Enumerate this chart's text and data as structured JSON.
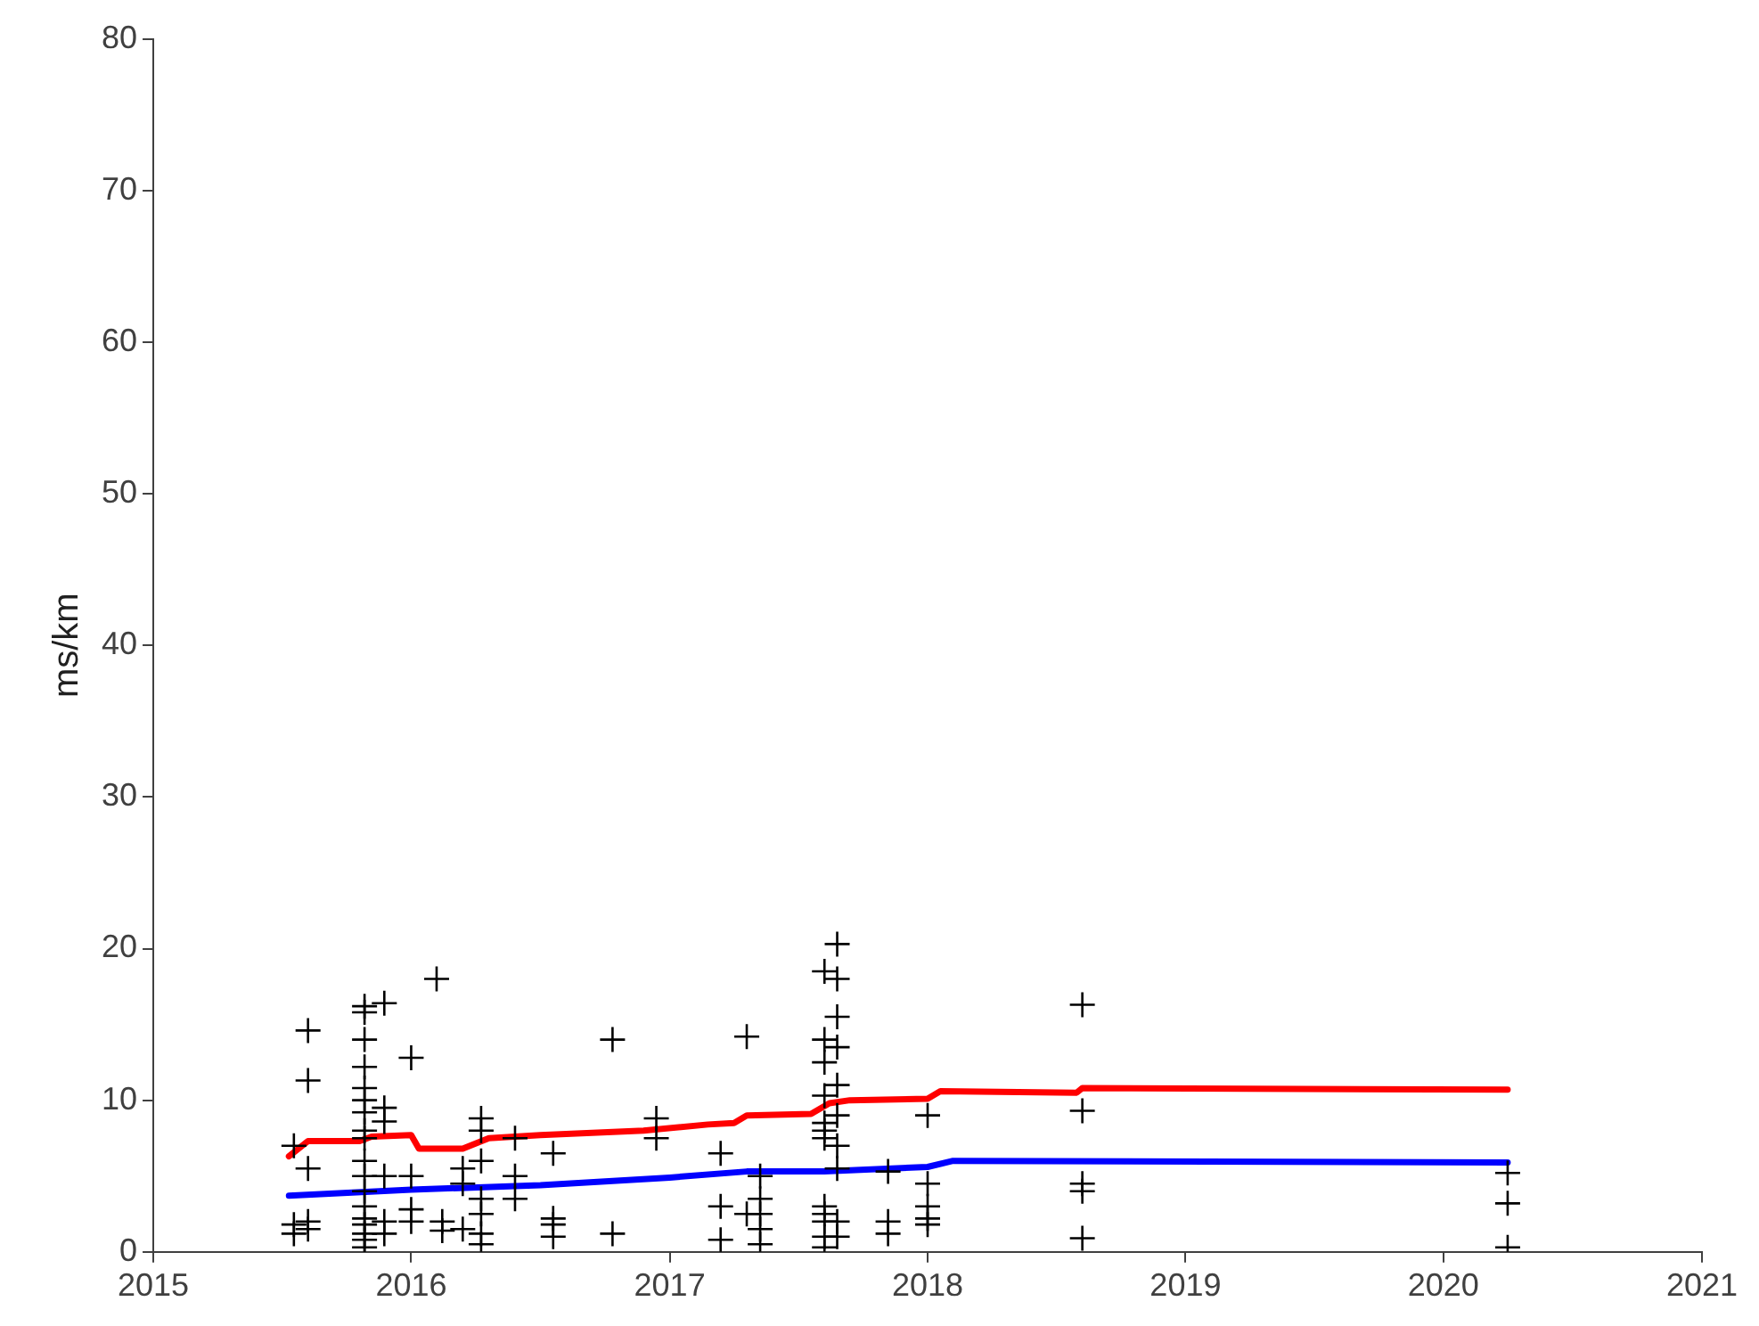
{
  "chart_data": {
    "type": "scatter",
    "ylabel": "ms/km",
    "xlim": [
      "2015",
      "2021"
    ],
    "xticks": [
      "2015",
      "2016",
      "2017",
      "2018",
      "2019",
      "2020",
      "2021"
    ],
    "ylim": [
      0,
      80
    ],
    "yticks": [
      0,
      10,
      20,
      30,
      40,
      50,
      60,
      70,
      80
    ],
    "grid": false,
    "legend": false,
    "marker": "cross",
    "series": [
      {
        "color": "#000000",
        "x": [
          "2015-07-19",
          "2015-07-19",
          "2015-07-19",
          "2015-08-08",
          "2015-08-08",
          "2015-08-08",
          "2015-08-08",
          "2015-08-08",
          "2015-10-27",
          "2015-10-27",
          "2015-10-27",
          "2015-10-27",
          "2015-10-27",
          "2015-10-27",
          "2015-10-27",
          "2015-10-27",
          "2015-10-27",
          "2015-10-27",
          "2015-10-27",
          "2015-10-27",
          "2015-10-27",
          "2015-10-27",
          "2015-10-27",
          "2015-10-27",
          "2015-10-27",
          "2015-10-27",
          "2015-11-24",
          "2015-11-24",
          "2015-11-24",
          "2015-11-24",
          "2015-11-24",
          "2015-11-24",
          "2016-01-01",
          "2016-01-01",
          "2016-01-01",
          "2016-01-01",
          "2016-02-06",
          "2016-02-14",
          "2016-02-14",
          "2016-03-14",
          "2016-03-14",
          "2016-03-14",
          "2016-04-09",
          "2016-04-09",
          "2016-04-09",
          "2016-04-09",
          "2016-04-09",
          "2016-04-09",
          "2016-04-09",
          "2016-05-27",
          "2016-05-27",
          "2016-05-27",
          "2016-07-20",
          "2016-07-20",
          "2016-07-20",
          "2016-07-20",
          "2016-10-12",
          "2016-10-12",
          "2016-12-13",
          "2016-12-13",
          "2017-03-14",
          "2017-03-14",
          "2017-03-14",
          "2017-04-20",
          "2017-04-20",
          "2017-05-09",
          "2017-05-09",
          "2017-05-09",
          "2017-05-09",
          "2017-05-09",
          "2017-08-08",
          "2017-08-08",
          "2017-08-08",
          "2017-08-08",
          "2017-08-08",
          "2017-08-08",
          "2017-08-08",
          "2017-08-08",
          "2017-08-08",
          "2017-08-08",
          "2017-08-08",
          "2017-08-08",
          "2017-08-26",
          "2017-08-26",
          "2017-08-26",
          "2017-08-26",
          "2017-08-26",
          "2017-08-26",
          "2017-08-26",
          "2017-08-26",
          "2017-08-26",
          "2017-08-26",
          "2017-11-06",
          "2017-11-06",
          "2017-11-06",
          "2018-01-01",
          "2018-01-01",
          "2018-01-01",
          "2018-01-01",
          "2018-01-01",
          "2018-08-08",
          "2018-08-08",
          "2018-08-08",
          "2018-08-08",
          "2018-08-08",
          "2020-04-01",
          "2020-04-01",
          "2020-04-01"
        ],
        "values": [
          7.0,
          1.8,
          1.2,
          14.6,
          11.3,
          5.5,
          2.0,
          1.5,
          16.2,
          15.8,
          14.0,
          12.2,
          10.8,
          10.0,
          9.2,
          8.0,
          7.5,
          6.0,
          5.0,
          4.0,
          3.0,
          2.2,
          1.8,
          1.2,
          0.8,
          0.3,
          16.4,
          9.5,
          8.6,
          5.0,
          2.0,
          1.2,
          12.8,
          5.0,
          2.8,
          2.0,
          18.0,
          2.0,
          1.4,
          5.5,
          4.5,
          1.5,
          8.8,
          8.0,
          6.0,
          3.5,
          2.5,
          1.2,
          0.5,
          7.5,
          5.0,
          3.5,
          6.5,
          2.2,
          1.8,
          1.0,
          14.0,
          1.2,
          8.8,
          7.5,
          6.5,
          3.0,
          0.8,
          14.2,
          2.5,
          5.0,
          3.5,
          2.5,
          1.5,
          0.5,
          18.5,
          14.0,
          12.5,
          10.3,
          8.5,
          8.0,
          7.5,
          3.0,
          2.5,
          2.0,
          1.0,
          0.3,
          20.3,
          18.0,
          15.5,
          13.5,
          11.0,
          9.0,
          7.0,
          5.5,
          2.0,
          1.0,
          5.3,
          2.0,
          1.2,
          9.0,
          4.5,
          3.0,
          2.2,
          1.8,
          16.3,
          9.3,
          4.5,
          4.0,
          0.9,
          5.2,
          3.2,
          0.3
        ]
      },
      {
        "type": "line",
        "color": "#ff0000",
        "marker": "none",
        "x": [
          "2015-07-12",
          "2015-08-08",
          "2015-10-20",
          "2015-11-06",
          "2016-01-01",
          "2016-01-12",
          "2016-03-14",
          "2016-04-20",
          "2016-07-02",
          "2016-11-25",
          "2017-02-24",
          "2017-04-02",
          "2017-04-20",
          "2017-07-20",
          "2017-08-15",
          "2017-09-13",
          "2018-01-01",
          "2018-01-19",
          "2018-07-31",
          "2018-08-08",
          "2020-04-01"
        ],
        "values": [
          6.3,
          7.3,
          7.3,
          7.6,
          7.7,
          6.8,
          6.8,
          7.5,
          7.7,
          8.0,
          8.4,
          8.5,
          9.0,
          9.1,
          9.8,
          10.0,
          10.1,
          10.6,
          10.5,
          10.8,
          10.7
        ]
      },
      {
        "type": "line",
        "color": "#0000ff",
        "marker": "none",
        "x": [
          "2015-07-12",
          "2016-01-01",
          "2016-07-02",
          "2017-01-01",
          "2017-04-20",
          "2017-08-08",
          "2018-01-01",
          "2018-02-06",
          "2020-04-01"
        ],
        "values": [
          3.7,
          4.1,
          4.4,
          4.9,
          5.3,
          5.3,
          5.6,
          6.0,
          5.9
        ]
      }
    ]
  }
}
